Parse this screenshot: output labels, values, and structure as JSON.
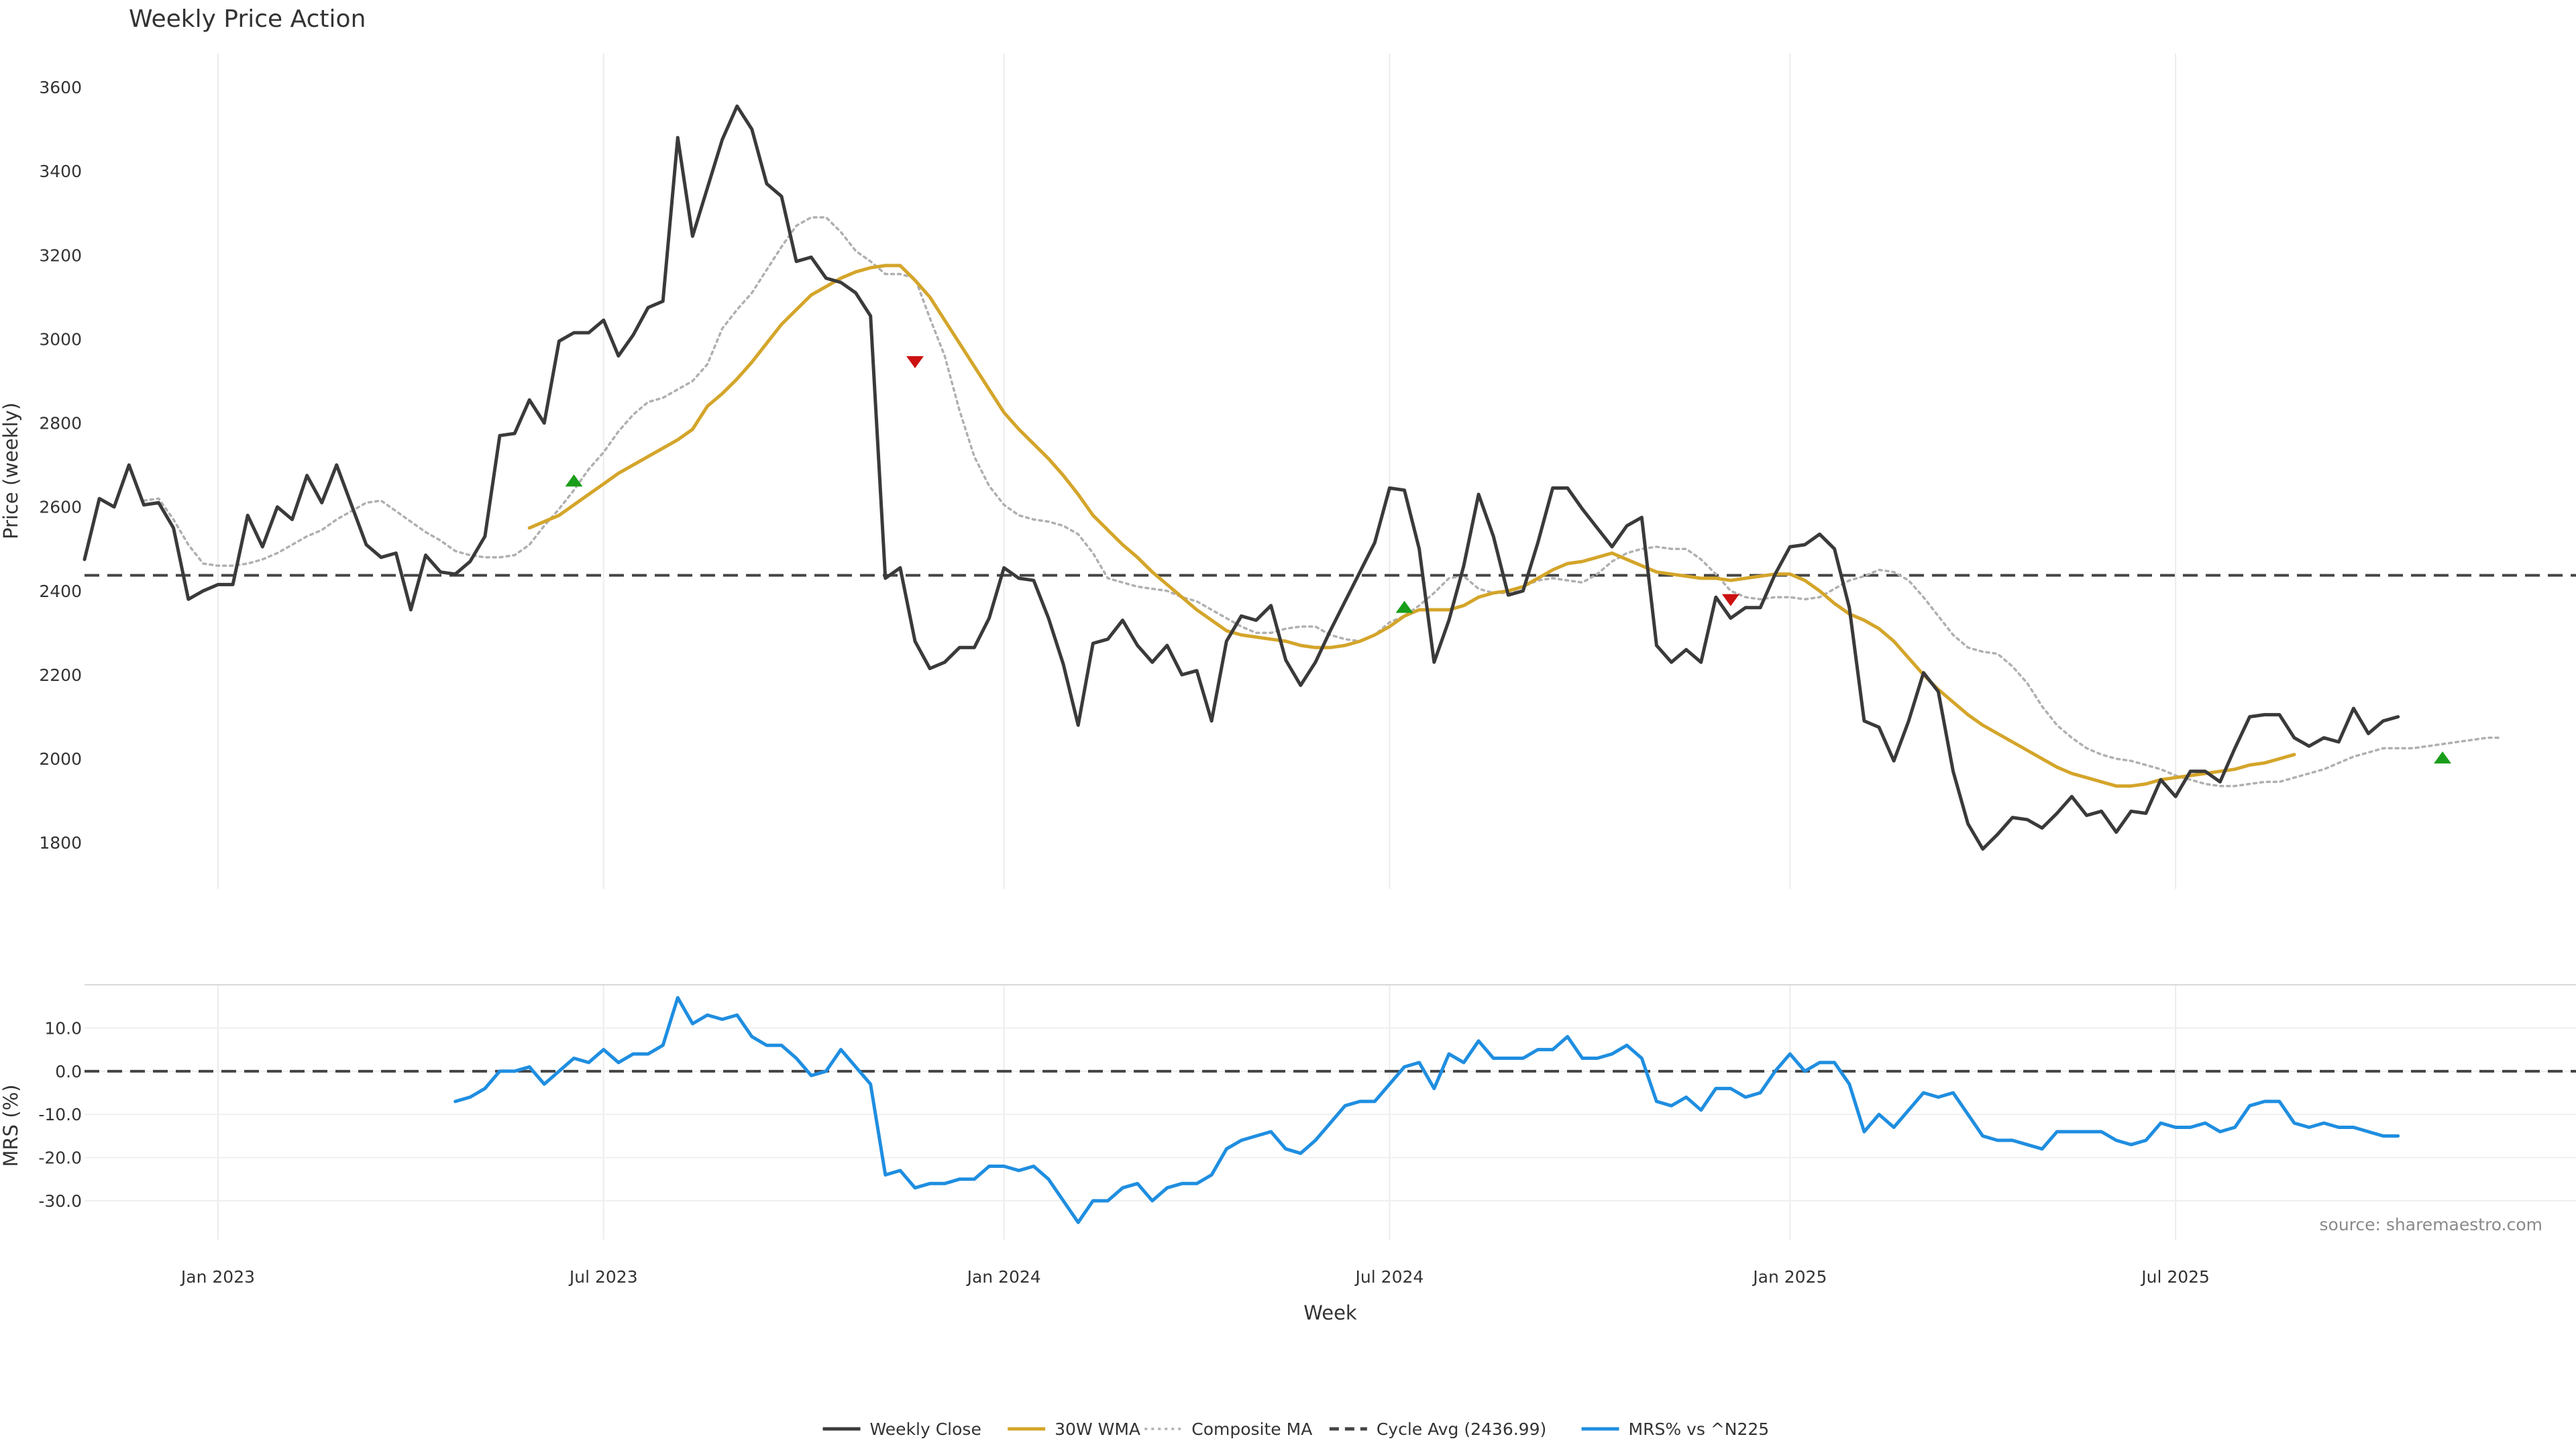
{
  "chart_data": [
    {
      "type": "line",
      "title": "Weekly Price Action",
      "ylabel": "Price (weekly)",
      "ylim": [
        1690,
        3680
      ],
      "yticks": [
        1800,
        2000,
        2200,
        2400,
        2600,
        2800,
        3000,
        3200,
        3400,
        3600
      ],
      "x_range_week_index": [
        0,
        168
      ],
      "grid": "vertical",
      "series": [
        {
          "name": "Weekly Close",
          "color": "#3a3a3a",
          "style": "solid",
          "x_start": 0,
          "values": [
            2475,
            2620,
            2600,
            2700,
            2605,
            2610,
            2550,
            2380,
            2400,
            2415,
            2415,
            2580,
            2505,
            2600,
            2570,
            2675,
            2610,
            2700,
            2605,
            2510,
            2480,
            2490,
            2355,
            2485,
            2445,
            2440,
            2470,
            2530,
            2770,
            2775,
            2855,
            2800,
            2995,
            3015,
            3015,
            3045,
            2960,
            3010,
            3075,
            3090,
            3480,
            3245,
            3360,
            3475,
            3555,
            3500,
            3370,
            3340,
            3185,
            3195,
            3145,
            3135,
            3110,
            3055,
            2430,
            2455,
            2280,
            2215,
            2230,
            2265,
            2265,
            2335,
            2455,
            2430,
            2425,
            2335,
            2225,
            2080,
            2275,
            2285,
            2330,
            2270,
            2230,
            2270,
            2200,
            2210,
            2090,
            2280,
            2340,
            2330,
            2365,
            2235,
            2175,
            2230,
            2305,
            2375,
            2445,
            2515,
            2645,
            2640,
            2500,
            2230,
            2330,
            2460,
            2630,
            2530,
            2390,
            2400,
            2515,
            2645,
            2645,
            2595,
            2550,
            2505,
            2555,
            2575,
            2270,
            2230,
            2260,
            2230,
            2385,
            2335,
            2360,
            2360,
            2440,
            2505,
            2510,
            2535,
            2500,
            2360,
            2090,
            2075,
            1995,
            2090,
            2205,
            2160,
            1970,
            1845,
            1785,
            1820,
            1860,
            1855,
            1835,
            1870,
            1910,
            1865,
            1875,
            1825,
            1875,
            1870,
            1950,
            1910,
            1970,
            1970,
            1945,
            2025,
            2100,
            2105,
            2105,
            2050,
            2030,
            2050,
            2040,
            2120,
            2060,
            2090,
            2100
          ]
        },
        {
          "name": "30W WMA",
          "color": "#d4a52a",
          "style": "solid",
          "x_start": 30,
          "values": [
            2550,
            2565,
            2580,
            2605,
            2630,
            2655,
            2680,
            2700,
            2720,
            2740,
            2760,
            2785,
            2840,
            2870,
            2905,
            2945,
            2990,
            3035,
            3070,
            3105,
            3125,
            3145,
            3160,
            3170,
            3175,
            3175,
            3140,
            3100,
            3045,
            2990,
            2935,
            2880,
            2825,
            2785,
            2750,
            2715,
            2675,
            2630,
            2580,
            2545,
            2510,
            2480,
            2445,
            2415,
            2385,
            2355,
            2330,
            2305,
            2295,
            2290,
            2285,
            2280,
            2270,
            2265,
            2265,
            2270,
            2280,
            2295,
            2315,
            2340,
            2355,
            2355,
            2355,
            2365,
            2385,
            2395,
            2400,
            2410,
            2430,
            2450,
            2465,
            2470,
            2480,
            2490,
            2475,
            2460,
            2445,
            2440,
            2435,
            2430,
            2430,
            2425,
            2430,
            2435,
            2440,
            2440,
            2425,
            2400,
            2370,
            2345,
            2330,
            2310,
            2280,
            2240,
            2200,
            2165,
            2135,
            2105,
            2080,
            2060,
            2040,
            2020,
            2000,
            1980,
            1965,
            1955,
            1945,
            1935,
            1935,
            1940,
            1950,
            1955,
            1960,
            1965,
            1970,
            1975,
            1985,
            1990,
            2000,
            2010
          ]
        },
        {
          "name": "Composite MA",
          "color": "#b0b0b0",
          "style": "dotted",
          "x_start": 4,
          "values": [
            2615,
            2620,
            2570,
            2510,
            2465,
            2460,
            2460,
            2465,
            2475,
            2490,
            2510,
            2530,
            2545,
            2570,
            2590,
            2610,
            2615,
            2590,
            2565,
            2540,
            2520,
            2495,
            2485,
            2480,
            2480,
            2485,
            2510,
            2555,
            2595,
            2640,
            2690,
            2730,
            2780,
            2820,
            2850,
            2860,
            2880,
            2900,
            2940,
            3025,
            3070,
            3110,
            3165,
            3220,
            3270,
            3290,
            3290,
            3255,
            3210,
            3185,
            3155,
            3155,
            3145,
            3050,
            2960,
            2830,
            2720,
            2650,
            2605,
            2580,
            2570,
            2565,
            2555,
            2535,
            2490,
            2430,
            2420,
            2410,
            2405,
            2400,
            2385,
            2375,
            2355,
            2335,
            2315,
            2300,
            2300,
            2310,
            2315,
            2315,
            2295,
            2285,
            2280,
            2295,
            2325,
            2340,
            2365,
            2395,
            2430,
            2435,
            2405,
            2395,
            2395,
            2410,
            2425,
            2430,
            2425,
            2420,
            2440,
            2470,
            2490,
            2500,
            2505,
            2500,
            2500,
            2475,
            2440,
            2400,
            2385,
            2380,
            2385,
            2385,
            2380,
            2385,
            2405,
            2425,
            2435,
            2450,
            2445,
            2425,
            2385,
            2340,
            2295,
            2265,
            2255,
            2250,
            2220,
            2180,
            2125,
            2080,
            2050,
            2025,
            2010,
            2000,
            1995,
            1985,
            1975,
            1960,
            1950,
            1940,
            1935,
            1935,
            1940,
            1945,
            1945,
            1955,
            1965,
            1975,
            1990,
            2005,
            2015,
            2025,
            2025,
            2025,
            2030,
            2035,
            2040,
            2045,
            2050,
            2050
          ]
        },
        {
          "name": "Cycle Avg (2436.99)",
          "color": "#444444",
          "style": "dashed",
          "y": 2436.99
        }
      ],
      "markers": [
        {
          "type": "buy",
          "x": 33,
          "y": 2663,
          "color": "#1a9e1a"
        },
        {
          "type": "sell",
          "x": 56,
          "y": 2945,
          "color": "#cc1111"
        },
        {
          "type": "buy",
          "x": 89,
          "y": 2362,
          "color": "#1a9e1a"
        },
        {
          "type": "sell",
          "x": 111,
          "y": 2378,
          "color": "#cc1111"
        },
        {
          "type": "buy",
          "x": 159,
          "y": 2003,
          "color": "#1a9e1a"
        }
      ]
    },
    {
      "type": "line",
      "title": "",
      "xlabel": "Week",
      "ylabel": "MRS (%)",
      "ylim": [
        -39,
        20
      ],
      "yticks": [
        10.0,
        0.0,
        -10.0,
        -20.0,
        -30.0
      ],
      "ytick_labels": [
        "10.0",
        "0.0",
        "-10.0",
        "-20.0",
        "-30.0"
      ],
      "xticks": [
        {
          "x": 9,
          "label": "Jan 2023"
        },
        {
          "x": 35,
          "label": "Jul 2023"
        },
        {
          "x": 62,
          "label": "Jan 2024"
        },
        {
          "x": 88,
          "label": "Jul 2024"
        },
        {
          "x": 115,
          "label": "Jan 2025"
        },
        {
          "x": 141,
          "label": "Jul 2025"
        }
      ],
      "series": [
        {
          "name": "MRS% vs ^N225",
          "color": "#1f8ee0",
          "style": "solid",
          "x_start": 25,
          "values": [
            -7,
            -6,
            -4,
            0,
            0,
            1,
            -3,
            0,
            3,
            2,
            5,
            2,
            4,
            4,
            6,
            17,
            11,
            13,
            12,
            13,
            8,
            6,
            6,
            3,
            -1,
            0,
            5,
            1,
            -3,
            -24,
            -23,
            -27,
            -26,
            -26,
            -25,
            -25,
            -22,
            -22,
            -23,
            -22,
            -25,
            -30,
            -35,
            -30,
            -30,
            -27,
            -26,
            -30,
            -27,
            -26,
            -26,
            -24,
            -18,
            -16,
            -15,
            -14,
            -18,
            -19,
            -16,
            -12,
            -8,
            -7,
            -7,
            -3,
            1,
            2,
            -4,
            4,
            2,
            7,
            3,
            3,
            3,
            5,
            5,
            8,
            3,
            3,
            4,
            6,
            3,
            -7,
            -8,
            -6,
            -9,
            -4,
            -4,
            -6,
            -5,
            0,
            4,
            0,
            2,
            2,
            -3,
            -14,
            -10,
            -13,
            -9,
            -5,
            -6,
            -5,
            -10,
            -15,
            -16,
            -16,
            -17,
            -18,
            -14,
            -14,
            -14,
            -14,
            -16,
            -17,
            -16,
            -12,
            -13,
            -13,
            -12,
            -14,
            -13,
            -8,
            -7,
            -7,
            -12,
            -13,
            -12,
            -13,
            -13,
            -14,
            -15,
            -15
          ]
        },
        {
          "name": "",
          "color": "#444444",
          "style": "dashed",
          "y": 0
        }
      ]
    }
  ],
  "legend": {
    "placement": "bottom-center",
    "items": [
      {
        "label": "Weekly Close",
        "color": "#3a3a3a",
        "style": "solid"
      },
      {
        "label": "30W WMA",
        "color": "#d4a52a",
        "style": "solid"
      },
      {
        "label": "Composite MA",
        "color": "#b0b0b0",
        "style": "dotted"
      },
      {
        "label": "Cycle Avg (2436.99)",
        "color": "#444444",
        "style": "dashed"
      },
      {
        "label": "MRS% vs ^N225",
        "color": "#1f8ee0",
        "style": "solid"
      }
    ]
  },
  "source": "source: sharemaestro.com"
}
